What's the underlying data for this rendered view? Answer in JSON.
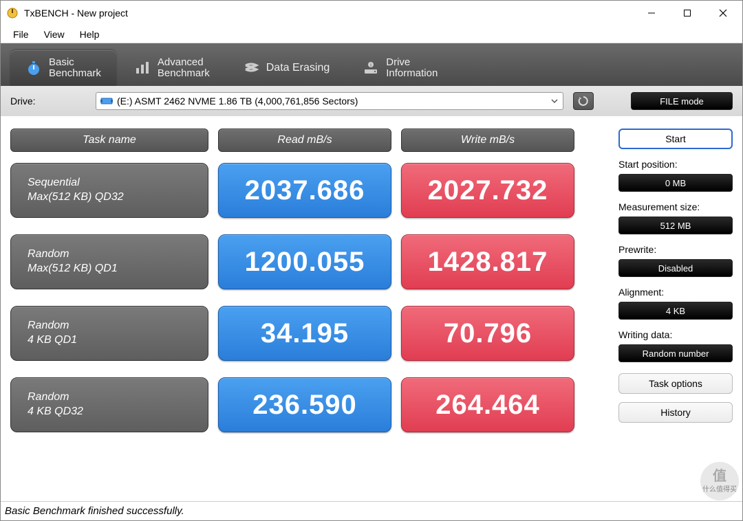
{
  "window": {
    "title": "TxBENCH - New project"
  },
  "menu": {
    "file": "File",
    "view": "View",
    "help": "Help"
  },
  "tabs": {
    "basic": {
      "line1": "Basic",
      "line2": "Benchmark"
    },
    "advanced": {
      "line1": "Advanced",
      "line2": "Benchmark"
    },
    "erasing": {
      "label": "Data Erasing"
    },
    "info": {
      "line1": "Drive",
      "line2": "Information"
    }
  },
  "drive": {
    "label": "Drive:",
    "value": "(E:) ASMT 2462 NVME   1.86 TB (4,000,761,856 Sectors)",
    "file_mode": "FILE mode"
  },
  "headers": {
    "task": "Task name",
    "read": "Read mB/s",
    "write": "Write mB/s"
  },
  "rows": [
    {
      "name1": "Sequential",
      "name2": "Max(512 KB) QD32",
      "read": "2037.686",
      "write": "2027.732"
    },
    {
      "name1": "Random",
      "name2": "Max(512 KB) QD1",
      "read": "1200.055",
      "write": "1428.817"
    },
    {
      "name1": "Random",
      "name2": "4 KB QD1",
      "read": "34.195",
      "write": "70.796"
    },
    {
      "name1": "Random",
      "name2": "4 KB QD32",
      "read": "236.590",
      "write": "264.464"
    }
  ],
  "side": {
    "start": "Start",
    "startpos_label": "Start position:",
    "startpos_val": "0 MB",
    "msize_label": "Measurement size:",
    "msize_val": "512 MB",
    "prewrite_label": "Prewrite:",
    "prewrite_val": "Disabled",
    "align_label": "Alignment:",
    "align_val": "4 KB",
    "wdata_label": "Writing data:",
    "wdata_val": "Random number",
    "taskopt": "Task options",
    "history": "History"
  },
  "status": "Basic Benchmark finished successfully.",
  "colors": {
    "read_bg": "#3a8ce8",
    "write_bg": "#e84a5f",
    "header_bg": "#606060",
    "task_bg": "#6a6a6a"
  },
  "watermark": {
    "char": "值",
    "text": "什么值得买"
  }
}
